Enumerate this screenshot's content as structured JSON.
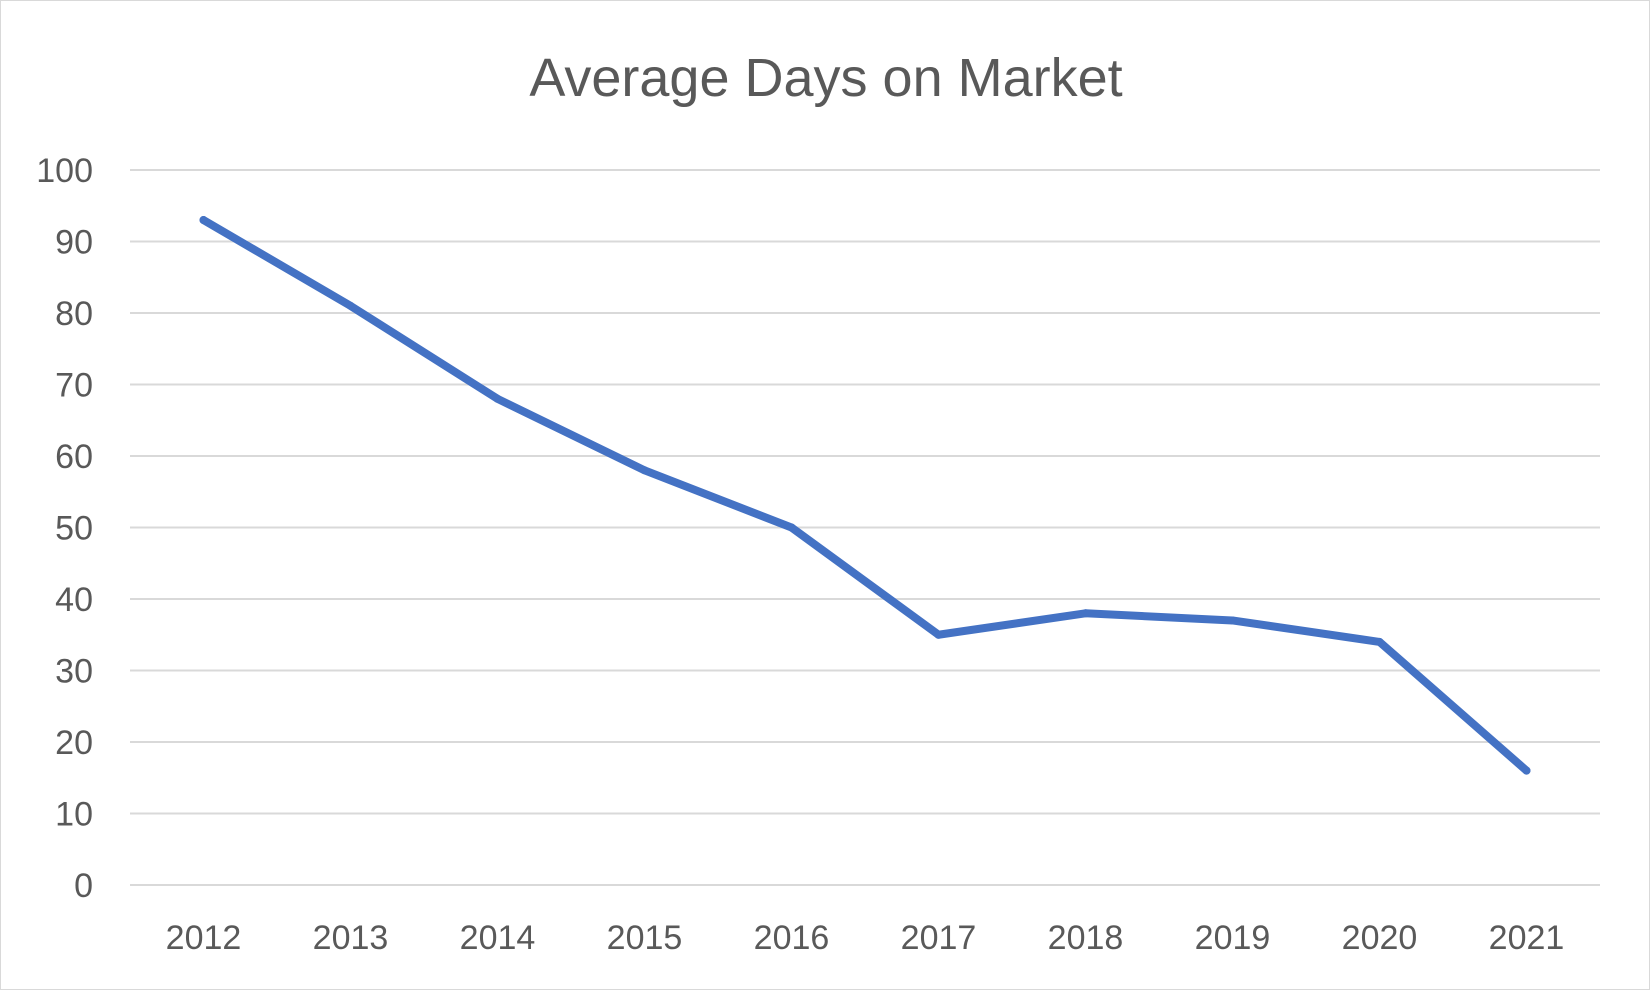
{
  "chart_data": {
    "type": "line",
    "title": "Average Days on Market",
    "xlabel": "",
    "ylabel": "",
    "categories": [
      "2012",
      "2013",
      "2014",
      "2015",
      "2016",
      "2017",
      "2018",
      "2019",
      "2020",
      "2021"
    ],
    "series": [
      {
        "values": [
          93,
          81,
          68,
          58,
          50,
          35,
          38,
          37,
          34,
          16
        ],
        "color": "#4472C4"
      }
    ],
    "ylim": [
      0,
      100
    ],
    "yticks": [
      0,
      10,
      20,
      30,
      40,
      50,
      60,
      70,
      80,
      90,
      100
    ],
    "grid": true,
    "legend": "none"
  }
}
